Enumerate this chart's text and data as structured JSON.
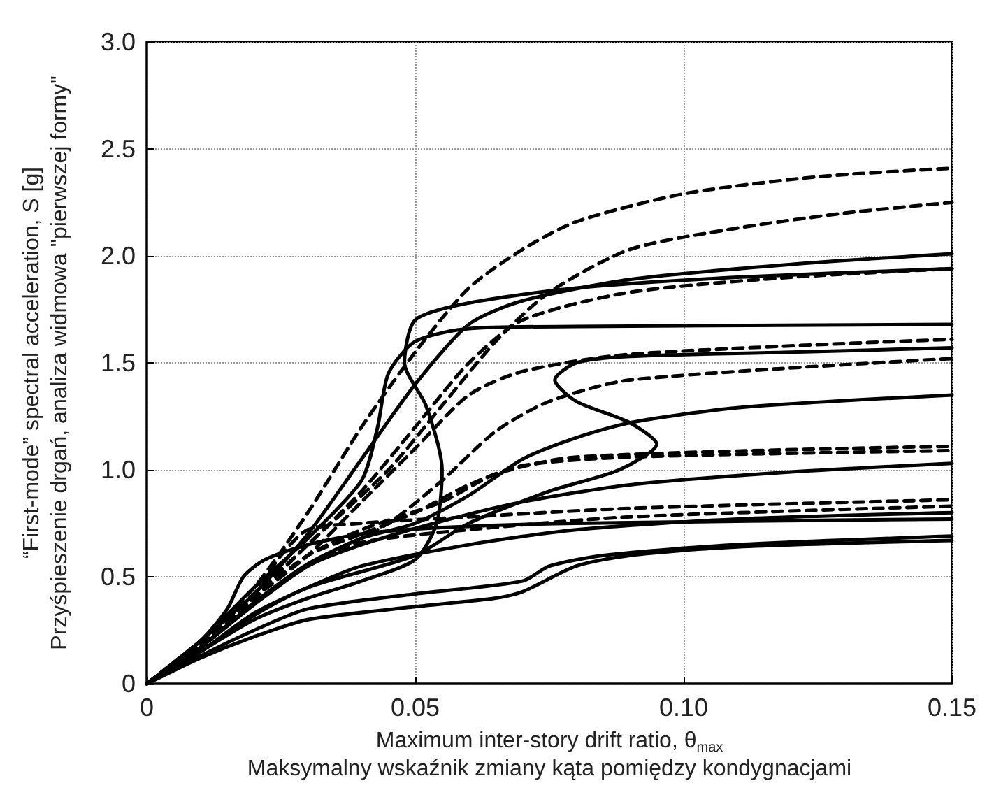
{
  "chart_data": {
    "type": "line",
    "xlabel": "Maximum inter-story drift ratio, θ$_{max}$\nMaksymalny wskaźnik zmiany kąta pomiędzy kondygnacjami",
    "ylabel": "“First-mode” spectral acceleration, S [g]\nPrzyśpieszenie drgań, analiza widmowa \"pierwszej formy\"",
    "xlim": [
      0,
      0.15
    ],
    "ylim": [
      0,
      3
    ],
    "xticks": [
      0,
      0.05,
      {
        "value": 0.1,
        "label": "0.10"
      },
      0.15
    ],
    "yticks": [
      0,
      0.5,
      {
        "value": 1,
        "label": "1.0"
      },
      1.5,
      {
        "value": 2,
        "label": "2.0"
      },
      2.5,
      {
        "value": 3,
        "label": "3.0"
      }
    ],
    "grid": true,
    "marker": "none",
    "series": [
      {
        "color": "#000000",
        "line_style": "dashed",
        "x": [
          0,
          0.01,
          0.02,
          0.03,
          0.04,
          0.05,
          0.06,
          0.07,
          0.08,
          0.1,
          0.125,
          0.15
        ],
        "values": [
          0,
          0.2,
          0.45,
          0.8,
          1.2,
          1.55,
          1.85,
          2.03,
          2.16,
          2.29,
          2.37,
          2.41
        ]
      },
      {
        "color": "#000000",
        "line_style": "dashed",
        "x": [
          0,
          0.01,
          0.02,
          0.03,
          0.045,
          0.055,
          0.065,
          0.075,
          0.09,
          0.11,
          0.13,
          0.15
        ],
        "values": [
          0,
          0.18,
          0.4,
          0.65,
          1.0,
          1.3,
          1.6,
          1.83,
          2.03,
          2.13,
          2.2,
          2.25
        ]
      },
      {
        "color": "#000000",
        "line_style": "solid",
        "x": [
          0,
          0.01,
          0.02,
          0.03,
          0.04,
          0.05,
          0.06,
          0.07,
          0.09,
          0.12,
          0.15
        ],
        "values": [
          0,
          0.2,
          0.42,
          0.7,
          1.05,
          1.4,
          1.68,
          1.79,
          1.89,
          1.96,
          2.01
        ]
      },
      {
        "color": "#000000",
        "line_style": "solid",
        "x": [
          0,
          0.01,
          0.02,
          0.03,
          0.04,
          0.05,
          0.054,
          0.055,
          0.052,
          0.048,
          0.05,
          0.06,
          0.08,
          0.11,
          0.15
        ],
        "values": [
          0,
          0.15,
          0.3,
          0.4,
          0.48,
          0.58,
          0.75,
          1.0,
          1.3,
          1.5,
          1.7,
          1.78,
          1.85,
          1.9,
          1.94
        ]
      },
      {
        "color": "#000000",
        "line_style": "dashed",
        "x": [
          0,
          0.01,
          0.02,
          0.03,
          0.04,
          0.05,
          0.06,
          0.07,
          0.09,
          0.12,
          0.15
        ],
        "values": [
          0,
          0.2,
          0.42,
          0.65,
          0.9,
          1.2,
          1.5,
          1.7,
          1.83,
          1.9,
          1.94
        ]
      },
      {
        "color": "#000000",
        "line_style": "solid",
        "x": [
          0,
          0.01,
          0.02,
          0.03,
          0.04,
          0.043,
          0.045,
          0.05,
          0.06,
          0.08,
          0.15
        ],
        "values": [
          0,
          0.2,
          0.45,
          0.68,
          0.95,
          1.2,
          1.45,
          1.6,
          1.66,
          1.67,
          1.68
        ]
      },
      {
        "color": "#000000",
        "line_style": "dashed",
        "x": [
          0,
          0.01,
          0.02,
          0.03,
          0.04,
          0.05,
          0.06,
          0.07,
          0.09,
          0.15
        ],
        "values": [
          0,
          0.18,
          0.4,
          0.6,
          0.85,
          1.1,
          1.35,
          1.46,
          1.54,
          1.61
        ]
      },
      {
        "color": "#000000",
        "line_style": "solid",
        "x": [
          0,
          0.01,
          0.02,
          0.03,
          0.05,
          0.06,
          0.075,
          0.088,
          0.095,
          0.09,
          0.08,
          0.076,
          0.08,
          0.09,
          0.12,
          0.15
        ],
        "values": [
          0,
          0.15,
          0.32,
          0.45,
          0.6,
          0.75,
          0.9,
          1.0,
          1.12,
          1.22,
          1.32,
          1.42,
          1.5,
          1.53,
          1.55,
          1.57
        ]
      },
      {
        "color": "#000000",
        "line_style": "dashed",
        "x": [
          0,
          0.01,
          0.02,
          0.03,
          0.045,
          0.055,
          0.065,
          0.075,
          0.09,
          0.15
        ],
        "values": [
          0,
          0.17,
          0.38,
          0.55,
          0.75,
          0.95,
          1.18,
          1.32,
          1.42,
          1.52
        ]
      },
      {
        "color": "#000000",
        "line_style": "solid",
        "x": [
          0,
          0.01,
          0.02,
          0.03,
          0.04,
          0.05,
          0.06,
          0.07,
          0.08,
          0.09,
          0.11,
          0.15
        ],
        "values": [
          0,
          0.17,
          0.38,
          0.56,
          0.68,
          0.75,
          0.88,
          1.05,
          1.15,
          1.22,
          1.29,
          1.35
        ]
      },
      {
        "color": "#000000",
        "line_style": "dashed",
        "x": [
          0,
          0.01,
          0.02,
          0.03,
          0.04,
          0.055,
          0.065,
          0.08,
          0.15
        ],
        "values": [
          0,
          0.17,
          0.4,
          0.6,
          0.72,
          0.85,
          0.98,
          1.06,
          1.11
        ]
      },
      {
        "color": "#000000",
        "line_style": "dashed",
        "x": [
          0,
          0.01,
          0.02,
          0.03,
          0.04,
          0.05,
          0.06,
          0.07,
          0.09,
          0.15
        ],
        "values": [
          0,
          0.17,
          0.4,
          0.6,
          0.7,
          0.8,
          0.93,
          1.02,
          1.06,
          1.09
        ]
      },
      {
        "color": "#000000",
        "line_style": "solid",
        "x": [
          0,
          0.01,
          0.02,
          0.03,
          0.04,
          0.055,
          0.07,
          0.09,
          0.12,
          0.15
        ],
        "values": [
          0,
          0.17,
          0.37,
          0.55,
          0.65,
          0.76,
          0.85,
          0.93,
          0.99,
          1.03
        ]
      },
      {
        "color": "#000000",
        "line_style": "dashed",
        "x": [
          0,
          0.01,
          0.02,
          0.025,
          0.03,
          0.04,
          0.06,
          0.09,
          0.15
        ],
        "values": [
          0,
          0.18,
          0.42,
          0.6,
          0.72,
          0.75,
          0.78,
          0.82,
          0.86
        ]
      },
      {
        "color": "#000000",
        "line_style": "dashed",
        "x": [
          0,
          0.01,
          0.02,
          0.03,
          0.04,
          0.06,
          0.09,
          0.15
        ],
        "values": [
          0,
          0.17,
          0.38,
          0.55,
          0.66,
          0.72,
          0.78,
          0.83
        ]
      },
      {
        "color": "#000000",
        "line_style": "solid",
        "x": [
          0,
          0.01,
          0.015,
          0.018,
          0.022,
          0.03,
          0.04,
          0.055,
          0.08,
          0.15
        ],
        "values": [
          0,
          0.2,
          0.35,
          0.5,
          0.58,
          0.65,
          0.7,
          0.73,
          0.75,
          0.77
        ]
      },
      {
        "color": "#000000",
        "line_style": "solid",
        "x": [
          0,
          0.01,
          0.02,
          0.03,
          0.04,
          0.06,
          0.08,
          0.11,
          0.15
        ],
        "values": [
          0,
          0.15,
          0.33,
          0.45,
          0.55,
          0.65,
          0.72,
          0.77,
          0.8
        ]
      },
      {
        "color": "#000000",
        "line_style": "solid",
        "x": [
          0,
          0.01,
          0.02,
          0.03,
          0.05,
          0.07,
          0.075,
          0.085,
          0.11,
          0.15
        ],
        "values": [
          0,
          0.13,
          0.25,
          0.35,
          0.42,
          0.48,
          0.55,
          0.6,
          0.65,
          0.69
        ]
      },
      {
        "color": "#000000",
        "line_style": "solid",
        "x": [
          0,
          0.01,
          0.02,
          0.03,
          0.05,
          0.065,
          0.07,
          0.08,
          0.09,
          0.11,
          0.15
        ],
        "values": [
          0,
          0.12,
          0.22,
          0.3,
          0.36,
          0.4,
          0.43,
          0.55,
          0.6,
          0.64,
          0.67
        ]
      }
    ]
  }
}
